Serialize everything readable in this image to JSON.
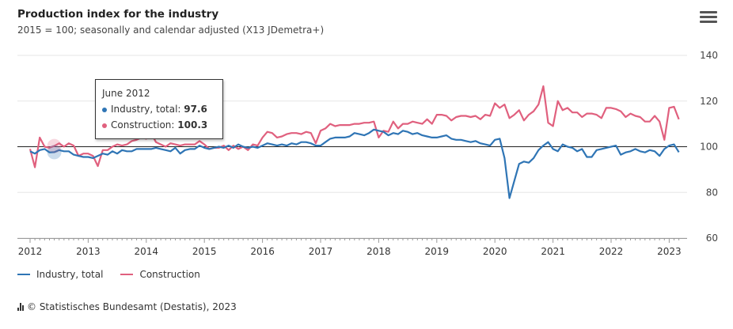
{
  "header": {
    "title": "Production index for the industry",
    "subtitle": "2015 = 100; seasonally and calendar adjusted (X13 JDemetra+)",
    "menu_icon": "hamburger-menu-icon"
  },
  "colors": {
    "industry": "#2f75b5",
    "construction": "#e0607e",
    "grid": "#e6e6e6",
    "baseline": "#222222"
  },
  "tooltip": {
    "date": "June 2012",
    "industry_label": "Industry, total: ",
    "industry_value": "97.6",
    "construction_label": "Construction: ",
    "construction_value": "100.3"
  },
  "footer": {
    "credit": "© Statistisches Bundesamt (Destatis), 2023",
    "credit_icon": "destatis-logo-icon"
  },
  "chart_data": {
    "type": "line",
    "title": "Production index for the industry",
    "subtitle": "2015 = 100; seasonally and calendar adjusted (X13 JDemetra+)",
    "x_start": "2012-01",
    "frequency": "monthly",
    "xticks": [
      "2012",
      "2013",
      "2014",
      "2015",
      "2016",
      "2017",
      "2018",
      "2019",
      "2020",
      "2021",
      "2022",
      "2023"
    ],
    "yticks": [
      60,
      80,
      100,
      120,
      140
    ],
    "ylim": [
      60,
      140
    ],
    "reference_line": 100,
    "grid": true,
    "legend_position": "bottom-left",
    "series": [
      {
        "name": "Industry, total",
        "values": [
          98.0,
          97.0,
          98.5,
          99.0,
          97.5,
          97.6,
          98.5,
          98.0,
          98.0,
          96.5,
          96.0,
          95.5,
          95.5,
          95.0,
          96.0,
          97.0,
          96.5,
          98.0,
          97.0,
          98.5,
          98.0,
          98.0,
          99.0,
          99.0,
          99.0,
          99.0,
          99.5,
          99.0,
          98.5,
          98.0,
          99.5,
          97.0,
          98.5,
          99.0,
          99.0,
          100.5,
          99.5,
          99.0,
          99.5,
          100.0,
          99.5,
          100.5,
          99.5,
          101.0,
          100.0,
          99.5,
          100.0,
          99.5,
          100.5,
          101.5,
          101.0,
          100.5,
          101.0,
          100.5,
          101.5,
          101.0,
          102.0,
          102.0,
          101.5,
          100.5,
          100.5,
          102.0,
          103.5,
          104.0,
          104.0,
          104.0,
          104.5,
          106.0,
          105.5,
          105.0,
          106.0,
          107.5,
          107.0,
          106.5,
          105.0,
          106.0,
          105.5,
          107.0,
          106.5,
          105.5,
          106.0,
          105.0,
          104.5,
          104.0,
          104.0,
          104.5,
          105.0,
          103.5,
          103.0,
          103.0,
          102.5,
          102.0,
          102.5,
          101.5,
          101.0,
          100.5,
          103.0,
          103.5,
          95.0,
          77.5,
          85.0,
          92.5,
          93.5,
          93.0,
          95.0,
          98.5,
          100.5,
          102.0,
          99.0,
          98.0,
          101.0,
          100.0,
          99.5,
          98.0,
          99.0,
          95.5,
          95.5,
          98.5,
          99.0,
          99.5,
          100.0,
          100.5,
          96.5,
          97.5,
          98.0,
          99.0,
          98.0,
          97.5,
          98.5,
          98.0,
          96.0,
          99.0,
          100.5,
          101.0,
          97.6
        ]
      },
      {
        "name": "Construction",
        "values": [
          99.0,
          91.0,
          104.0,
          100.0,
          99.5,
          100.3,
          101.5,
          100.0,
          101.5,
          100.5,
          96.0,
          97.0,
          97.0,
          96.0,
          91.5,
          98.5,
          98.5,
          100.0,
          101.0,
          100.5,
          101.0,
          102.5,
          103.0,
          104.0,
          103.5,
          106.0,
          102.0,
          101.0,
          100.0,
          101.5,
          101.0,
          100.5,
          101.0,
          101.0,
          101.0,
          102.5,
          101.0,
          99.0,
          99.5,
          99.5,
          100.5,
          98.5,
          100.5,
          99.0,
          100.0,
          98.5,
          101.0,
          100.5,
          104.0,
          106.5,
          106.0,
          104.0,
          104.5,
          105.5,
          106.0,
          106.0,
          105.5,
          106.5,
          106.0,
          101.5,
          107.0,
          108.0,
          110.0,
          109.0,
          109.5,
          109.5,
          109.5,
          110.0,
          110.0,
          110.5,
          110.5,
          111.0,
          104.0,
          107.0,
          106.5,
          111.0,
          108.0,
          110.0,
          110.0,
          111.0,
          110.5,
          110.0,
          112.0,
          110.0,
          114.0,
          114.0,
          113.5,
          111.5,
          113.0,
          113.5,
          113.5,
          113.0,
          113.5,
          112.0,
          114.0,
          113.5,
          119.0,
          117.0,
          118.5,
          112.5,
          114.0,
          116.0,
          111.5,
          114.0,
          115.5,
          118.5,
          126.5,
          110.5,
          109.0,
          120.0,
          116.0,
          117.0,
          115.0,
          115.0,
          113.0,
          114.5,
          114.5,
          114.0,
          112.5,
          117.0,
          117.0,
          116.5,
          115.5,
          113.0,
          114.5,
          113.5,
          113.0,
          111.0,
          111.0,
          113.5,
          111.0,
          103.0,
          117.0,
          117.5,
          112.0
        ]
      }
    ]
  }
}
